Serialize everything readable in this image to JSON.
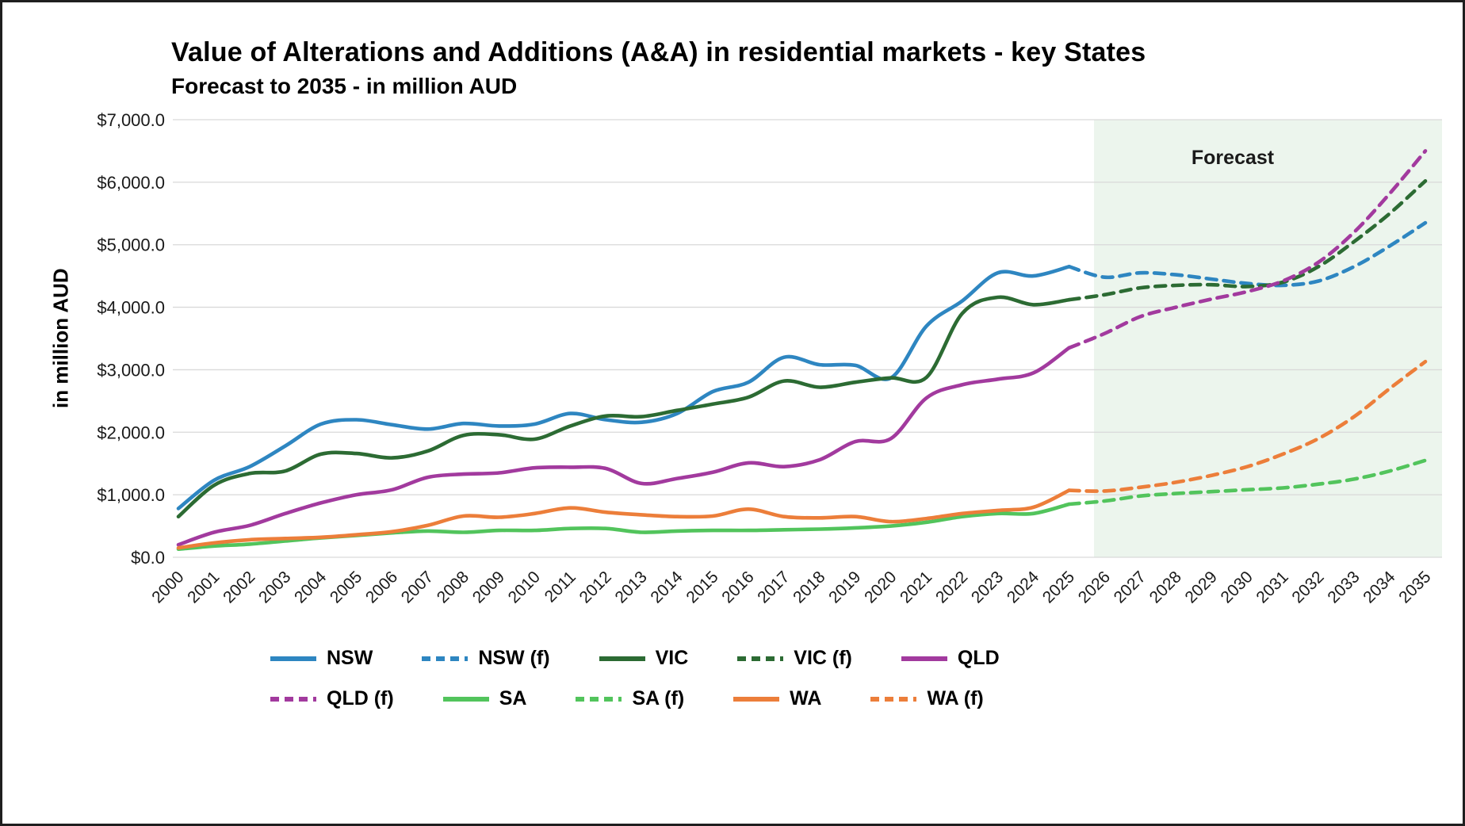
{
  "chart": {
    "title": "Value of Alterations and Additions (A&A) in residential markets - key States",
    "subtitle": "Forecast to 2035 - in million AUD",
    "ylabel": "in million AUD",
    "forecast_label": "Forecast"
  },
  "chart_data": {
    "type": "line",
    "title": "Value of Alterations and Additions (A&A) in residential markets - key States",
    "subtitle": "Forecast to 2035 - in million AUD",
    "xlabel": "",
    "ylabel": "in million AUD",
    "ylim": [
      0,
      7000
    ],
    "ytick_step": 1000,
    "ytick_labels": [
      "$0.0",
      "$1,000.0",
      "$2,000.0",
      "$3,000.0",
      "$4,000.0",
      "$5,000.0",
      "$6,000.0",
      "$7,000.0"
    ],
    "x": [
      2000,
      2001,
      2002,
      2003,
      2004,
      2005,
      2006,
      2007,
      2008,
      2009,
      2010,
      2011,
      2012,
      2013,
      2014,
      2015,
      2016,
      2017,
      2018,
      2019,
      2020,
      2021,
      2022,
      2023,
      2024,
      2025,
      2026,
      2027,
      2028,
      2029,
      2030,
      2031,
      2032,
      2033,
      2034,
      2035
    ],
    "grid": "horizontal",
    "gridline_color": "#d9d9d9",
    "legend_position": "bottom",
    "forecast_region": {
      "start": 2025.7,
      "end": 2035.6,
      "label": "Forecast",
      "color": "#ecf5ed"
    },
    "series": [
      {
        "name": "NSW",
        "color": "#2e86c1",
        "dash": false,
        "years": [
          2000,
          2001,
          2002,
          2003,
          2004,
          2005,
          2006,
          2007,
          2008,
          2009,
          2010,
          2011,
          2012,
          2013,
          2014,
          2015,
          2016,
          2017,
          2018,
          2019,
          2020,
          2021,
          2022,
          2023,
          2024,
          2025
        ],
        "values": [
          780,
          1230,
          1450,
          1780,
          2130,
          2200,
          2120,
          2050,
          2140,
          2100,
          2130,
          2300,
          2200,
          2160,
          2300,
          2650,
          2800,
          3200,
          3080,
          3070,
          2870,
          3700,
          4100,
          4550,
          4500,
          4650
        ]
      },
      {
        "name": "NSW (f)",
        "color": "#2e86c1",
        "dash": true,
        "years": [
          2025,
          2026,
          2027,
          2028,
          2029,
          2030,
          2031,
          2032,
          2033,
          2034,
          2035
        ],
        "values": [
          4650,
          4480,
          4550,
          4520,
          4450,
          4380,
          4350,
          4420,
          4650,
          4980,
          5350
        ]
      },
      {
        "name": "VIC",
        "color": "#2c6b33",
        "dash": false,
        "years": [
          2000,
          2001,
          2002,
          2003,
          2004,
          2005,
          2006,
          2007,
          2008,
          2009,
          2010,
          2011,
          2012,
          2013,
          2014,
          2015,
          2016,
          2017,
          2018,
          2019,
          2020,
          2021,
          2022,
          2023,
          2024,
          2025
        ],
        "values": [
          650,
          1150,
          1340,
          1380,
          1650,
          1660,
          1590,
          1700,
          1950,
          1960,
          1890,
          2100,
          2260,
          2250,
          2350,
          2450,
          2560,
          2820,
          2720,
          2800,
          2870,
          2880,
          3900,
          4160,
          4040,
          4120
        ]
      },
      {
        "name": "VIC (f)",
        "color": "#2c6b33",
        "dash": true,
        "years": [
          2025,
          2026,
          2027,
          2028,
          2029,
          2030,
          2031,
          2032,
          2033,
          2034,
          2035
        ],
        "values": [
          4120,
          4200,
          4310,
          4350,
          4360,
          4330,
          4400,
          4650,
          5050,
          5500,
          6020
        ]
      },
      {
        "name": "QLD",
        "color": "#a23a9e",
        "dash": false,
        "years": [
          2000,
          2001,
          2002,
          2003,
          2004,
          2005,
          2006,
          2007,
          2008,
          2009,
          2010,
          2011,
          2012,
          2013,
          2014,
          2015,
          2016,
          2017,
          2018,
          2019,
          2020,
          2021,
          2022,
          2023,
          2024,
          2025
        ],
        "values": [
          200,
          400,
          510,
          700,
          870,
          1000,
          1080,
          1280,
          1330,
          1350,
          1430,
          1440,
          1420,
          1180,
          1260,
          1360,
          1510,
          1450,
          1560,
          1850,
          1900,
          2550,
          2760,
          2850,
          2950,
          3350
        ]
      },
      {
        "name": "QLD (f)",
        "color": "#a23a9e",
        "dash": true,
        "years": [
          2025,
          2026,
          2027,
          2028,
          2029,
          2030,
          2031,
          2032,
          2033,
          2034,
          2035
        ],
        "values": [
          3350,
          3580,
          3850,
          4000,
          4130,
          4250,
          4420,
          4720,
          5200,
          5820,
          6500
        ]
      },
      {
        "name": "SA",
        "color": "#52c45c",
        "dash": false,
        "years": [
          2000,
          2001,
          2002,
          2003,
          2004,
          2005,
          2006,
          2007,
          2008,
          2009,
          2010,
          2011,
          2012,
          2013,
          2014,
          2015,
          2016,
          2017,
          2018,
          2019,
          2020,
          2021,
          2022,
          2023,
          2024,
          2025
        ],
        "values": [
          130,
          180,
          210,
          260,
          310,
          350,
          390,
          420,
          400,
          430,
          430,
          460,
          460,
          400,
          420,
          430,
          430,
          440,
          450,
          470,
          500,
          560,
          650,
          700,
          700,
          850
        ]
      },
      {
        "name": "SA (f)",
        "color": "#52c45c",
        "dash": true,
        "years": [
          2025,
          2026,
          2027,
          2028,
          2029,
          2030,
          2031,
          2032,
          2033,
          2034,
          2035
        ],
        "values": [
          850,
          900,
          980,
          1020,
          1050,
          1080,
          1110,
          1170,
          1250,
          1380,
          1550
        ]
      },
      {
        "name": "WA",
        "color": "#ec7e3a",
        "dash": false,
        "years": [
          2000,
          2001,
          2002,
          2003,
          2004,
          2005,
          2006,
          2007,
          2008,
          2009,
          2010,
          2011,
          2012,
          2013,
          2014,
          2015,
          2016,
          2017,
          2018,
          2019,
          2020,
          2021,
          2022,
          2023,
          2024,
          2025
        ],
        "values": [
          150,
          230,
          280,
          300,
          320,
          360,
          410,
          510,
          660,
          640,
          700,
          790,
          720,
          680,
          650,
          660,
          770,
          650,
          630,
          650,
          570,
          620,
          700,
          750,
          800,
          1070
        ]
      },
      {
        "name": "WA (f)",
        "color": "#ec7e3a",
        "dash": true,
        "years": [
          2025,
          2026,
          2027,
          2028,
          2029,
          2030,
          2031,
          2032,
          2033,
          2034,
          2035
        ],
        "values": [
          1070,
          1060,
          1120,
          1200,
          1310,
          1450,
          1650,
          1900,
          2250,
          2700,
          3130
        ]
      }
    ]
  }
}
